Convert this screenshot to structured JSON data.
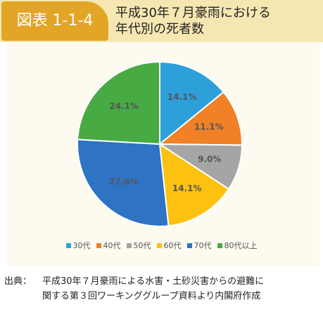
{
  "figure_label": "図表 1-1-4",
  "title_lines": [
    "平成30年７月豪雨における",
    "年代別の死者数"
  ],
  "chart_data": {
    "type": "pie",
    "slices": [
      {
        "label": "30代",
        "value": 14.1,
        "display": "14.1%",
        "color": "#2da0d9"
      },
      {
        "label": "40代",
        "value": 11.1,
        "display": "11.1%",
        "color": "#f08127"
      },
      {
        "label": "50代",
        "value": 9.0,
        "display": "9.0%",
        "color": "#a5a5a5"
      },
      {
        "label": "60代",
        "value": 14.1,
        "display": "14.1%",
        "color": "#fdc110"
      },
      {
        "label": "70代",
        "value": 27.6,
        "display": "27.6%",
        "color": "#2e73c4"
      },
      {
        "label": "80代以上",
        "value": 24.1,
        "display": "24.1%",
        "color": "#47aa43"
      }
    ],
    "legend_position": "bottom"
  },
  "source": {
    "prefix": "出典：",
    "lines": [
      "平成30年７月豪雨による水害・土砂災害からの避難に",
      "関する第３回ワーキンググループ資料より内閣府作成"
    ]
  }
}
